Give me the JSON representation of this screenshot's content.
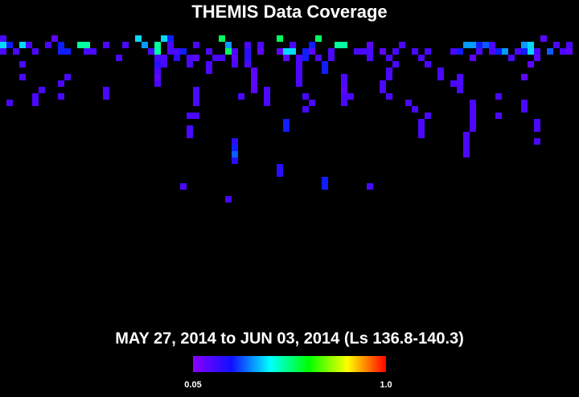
{
  "chart_data": {
    "type": "heatmap",
    "title": "THEMIS Data Coverage",
    "subtitle": "MAY 27, 2014 to JUN 03, 2014 (Ls 136.8-140.3)",
    "clim": [
      0.05,
      1
    ],
    "colorbar_ticks": [
      {
        "value": 0.05,
        "label": "0.05"
      },
      {
        "value": 1,
        "label": "1.0"
      }
    ],
    "colormap": [
      "#8a00ff",
      "#1010ff",
      "#00ffff",
      "#00ff00",
      "#ffff00",
      "#ff0000"
    ],
    "cells": [
      [
        0,
        0,
        0.15
      ],
      [
        8,
        0,
        0.12
      ],
      [
        21,
        0,
        0.4
      ],
      [
        25,
        0,
        0.4
      ],
      [
        26,
        0,
        0.25
      ],
      [
        34,
        0,
        0.55
      ],
      [
        43,
        0,
        0.55
      ],
      [
        49,
        0,
        0.55
      ],
      [
        84,
        0,
        0.12
      ],
      [
        0,
        1,
        0.4
      ],
      [
        1,
        1,
        0.25
      ],
      [
        3,
        1,
        0.4
      ],
      [
        4,
        1,
        0.15
      ],
      [
        7,
        1,
        0.15
      ],
      [
        9,
        1,
        0.25
      ],
      [
        12,
        1,
        0.5
      ],
      [
        13,
        1,
        0.5
      ],
      [
        16,
        1,
        0.15
      ],
      [
        19,
        1,
        0.15
      ],
      [
        22,
        1,
        0.35
      ],
      [
        24,
        1,
        0.5
      ],
      [
        26,
        1,
        0.15
      ],
      [
        30,
        1,
        0.15
      ],
      [
        35,
        1,
        0.35
      ],
      [
        38,
        1,
        0.15
      ],
      [
        40,
        1,
        0.15
      ],
      [
        45,
        1,
        0.15
      ],
      [
        48,
        1,
        0.25
      ],
      [
        52,
        1,
        0.5
      ],
      [
        53,
        1,
        0.5
      ],
      [
        57,
        1,
        0.12
      ],
      [
        62,
        1,
        0.15
      ],
      [
        72,
        1,
        0.35
      ],
      [
        73,
        1,
        0.35
      ],
      [
        74,
        1,
        0.25
      ],
      [
        75,
        1,
        0.3
      ],
      [
        76,
        1,
        0.15
      ],
      [
        81,
        1,
        0.35
      ],
      [
        82,
        1,
        0.4
      ],
      [
        86,
        1,
        0.15
      ],
      [
        88,
        1,
        0.15
      ],
      [
        0,
        2,
        0.15
      ],
      [
        2,
        2,
        0.15
      ],
      [
        5,
        2,
        0.15
      ],
      [
        9,
        2,
        0.25
      ],
      [
        10,
        2,
        0.25
      ],
      [
        13,
        2,
        0.15
      ],
      [
        14,
        2,
        0.15
      ],
      [
        23,
        2,
        0.15
      ],
      [
        24,
        2,
        0.5
      ],
      [
        26,
        2,
        0.15
      ],
      [
        27,
        2,
        0.15
      ],
      [
        28,
        2,
        0.25
      ],
      [
        32,
        2,
        0.15
      ],
      [
        35,
        2,
        0.55
      ],
      [
        36,
        2,
        0.15
      ],
      [
        38,
        2,
        0.2
      ],
      [
        40,
        2,
        0.12
      ],
      [
        43,
        2,
        0.12
      ],
      [
        44,
        2,
        0.4
      ],
      [
        45,
        2,
        0.4
      ],
      [
        47,
        2,
        0.25
      ],
      [
        48,
        2,
        0.12
      ],
      [
        51,
        2,
        0.15
      ],
      [
        55,
        2,
        0.15
      ],
      [
        56,
        2,
        0.15
      ],
      [
        57,
        2,
        0.15
      ],
      [
        59,
        2,
        0.12
      ],
      [
        61,
        2,
        0.15
      ],
      [
        64,
        2,
        0.15
      ],
      [
        66,
        2,
        0.15
      ],
      [
        70,
        2,
        0.15
      ],
      [
        71,
        2,
        0.25
      ],
      [
        74,
        2,
        0.15
      ],
      [
        76,
        2,
        0.15
      ],
      [
        77,
        2,
        0.25
      ],
      [
        78,
        2,
        0.35
      ],
      [
        80,
        2,
        0.15
      ],
      [
        81,
        2,
        0.25
      ],
      [
        82,
        2,
        0.4
      ],
      [
        83,
        2,
        0.15
      ],
      [
        85,
        2,
        0.3
      ],
      [
        87,
        2,
        0.15
      ],
      [
        88,
        2,
        0.12
      ],
      [
        18,
        3,
        0.15
      ],
      [
        24,
        3,
        0.15
      ],
      [
        25,
        3,
        0.15
      ],
      [
        27,
        3,
        0.2
      ],
      [
        29,
        3,
        0.15
      ],
      [
        30,
        3,
        0.12
      ],
      [
        33,
        3,
        0.15
      ],
      [
        34,
        3,
        0.15
      ],
      [
        36,
        3,
        0.12
      ],
      [
        38,
        3,
        0.2
      ],
      [
        44,
        3,
        0.12
      ],
      [
        46,
        3,
        0.15
      ],
      [
        47,
        3,
        0.25
      ],
      [
        49,
        3,
        0.15
      ],
      [
        51,
        3,
        0.15
      ],
      [
        57,
        3,
        0.15
      ],
      [
        60,
        3,
        0.15
      ],
      [
        65,
        3,
        0.15
      ],
      [
        73,
        3,
        0.12
      ],
      [
        79,
        3,
        0.15
      ],
      [
        83,
        3,
        0.12
      ],
      [
        3,
        4,
        0.15
      ],
      [
        24,
        4,
        0.2
      ],
      [
        25,
        4,
        0.15
      ],
      [
        29,
        4,
        0.15
      ],
      [
        32,
        4,
        0.15
      ],
      [
        36,
        4,
        0.15
      ],
      [
        38,
        4,
        0.15
      ],
      [
        46,
        4,
        0.15
      ],
      [
        50,
        4,
        0.25
      ],
      [
        61,
        4,
        0.15
      ],
      [
        66,
        4,
        0.15
      ],
      [
        82,
        4,
        0.12
      ],
      [
        24,
        5,
        0.15
      ],
      [
        32,
        5,
        0.15
      ],
      [
        39,
        5,
        0.12
      ],
      [
        46,
        5,
        0.15
      ],
      [
        50,
        5,
        0.25
      ],
      [
        60,
        5,
        0.15
      ],
      [
        68,
        5,
        0.15
      ],
      [
        3,
        6,
        0.15
      ],
      [
        10,
        6,
        0.15
      ],
      [
        24,
        6,
        0.12
      ],
      [
        39,
        6,
        0.12
      ],
      [
        46,
        6,
        0.15
      ],
      [
        53,
        6,
        0.15
      ],
      [
        60,
        6,
        0.15
      ],
      [
        68,
        6,
        0.15
      ],
      [
        71,
        6,
        0.15
      ],
      [
        81,
        6,
        0.12
      ],
      [
        9,
        7,
        0.15
      ],
      [
        24,
        7,
        0.15
      ],
      [
        39,
        7,
        0.12
      ],
      [
        46,
        7,
        0.15
      ],
      [
        53,
        7,
        0.15
      ],
      [
        59,
        7,
        0.15
      ],
      [
        70,
        7,
        0.15
      ],
      [
        71,
        7,
        0.15
      ],
      [
        6,
        8,
        0.15
      ],
      [
        16,
        8,
        0.15
      ],
      [
        30,
        8,
        0.15
      ],
      [
        39,
        8,
        0.12
      ],
      [
        41,
        8,
        0.15
      ],
      [
        53,
        8,
        0.12
      ],
      [
        59,
        8,
        0.15
      ],
      [
        71,
        8,
        0.15
      ],
      [
        5,
        9,
        0.15
      ],
      [
        9,
        9,
        0.15
      ],
      [
        16,
        9,
        0.15
      ],
      [
        30,
        9,
        0.15
      ],
      [
        37,
        9,
        0.15
      ],
      [
        41,
        9,
        0.15
      ],
      [
        47,
        9,
        0.15
      ],
      [
        53,
        9,
        0.15
      ],
      [
        54,
        9,
        0.15
      ],
      [
        60,
        9,
        0.15
      ],
      [
        77,
        9,
        0.15
      ],
      [
        1,
        10,
        0.15
      ],
      [
        5,
        10,
        0.15
      ],
      [
        30,
        10,
        0.15
      ],
      [
        41,
        10,
        0.15
      ],
      [
        48,
        10,
        0.15
      ],
      [
        53,
        10,
        0.15
      ],
      [
        63,
        10,
        0.15
      ],
      [
        73,
        10,
        0.15
      ],
      [
        81,
        10,
        0.15
      ],
      [
        47,
        11,
        0.15
      ],
      [
        64,
        11,
        0.15
      ],
      [
        73,
        11,
        0.15
      ],
      [
        81,
        11,
        0.15
      ],
      [
        29,
        12,
        0.15
      ],
      [
        30,
        12,
        0.15
      ],
      [
        66,
        12,
        0.15
      ],
      [
        73,
        12,
        0.15
      ],
      [
        77,
        12,
        0.15
      ],
      [
        44,
        13,
        0.25
      ],
      [
        65,
        13,
        0.15
      ],
      [
        73,
        13,
        0.15
      ],
      [
        83,
        13,
        0.15
      ],
      [
        29,
        14,
        0.15
      ],
      [
        44,
        14,
        0.25
      ],
      [
        65,
        14,
        0.15
      ],
      [
        73,
        14,
        0.15
      ],
      [
        83,
        14,
        0.15
      ],
      [
        29,
        15,
        0.15
      ],
      [
        65,
        15,
        0.15
      ],
      [
        72,
        15,
        0.15
      ],
      [
        36,
        16,
        0.2
      ],
      [
        72,
        16,
        0.15
      ],
      [
        83,
        16,
        0.15
      ],
      [
        36,
        17,
        0.25
      ],
      [
        72,
        17,
        0.15
      ],
      [
        36,
        18,
        0.3
      ],
      [
        72,
        18,
        0.15
      ],
      [
        36,
        19,
        0.2
      ],
      [
        43,
        20,
        0.2
      ],
      [
        43,
        21,
        0.2
      ],
      [
        50,
        22,
        0.25
      ],
      [
        28,
        23,
        0.15
      ],
      [
        50,
        23,
        0.25
      ],
      [
        57,
        23,
        0.15
      ],
      [
        35,
        25,
        0.15
      ]
    ]
  }
}
